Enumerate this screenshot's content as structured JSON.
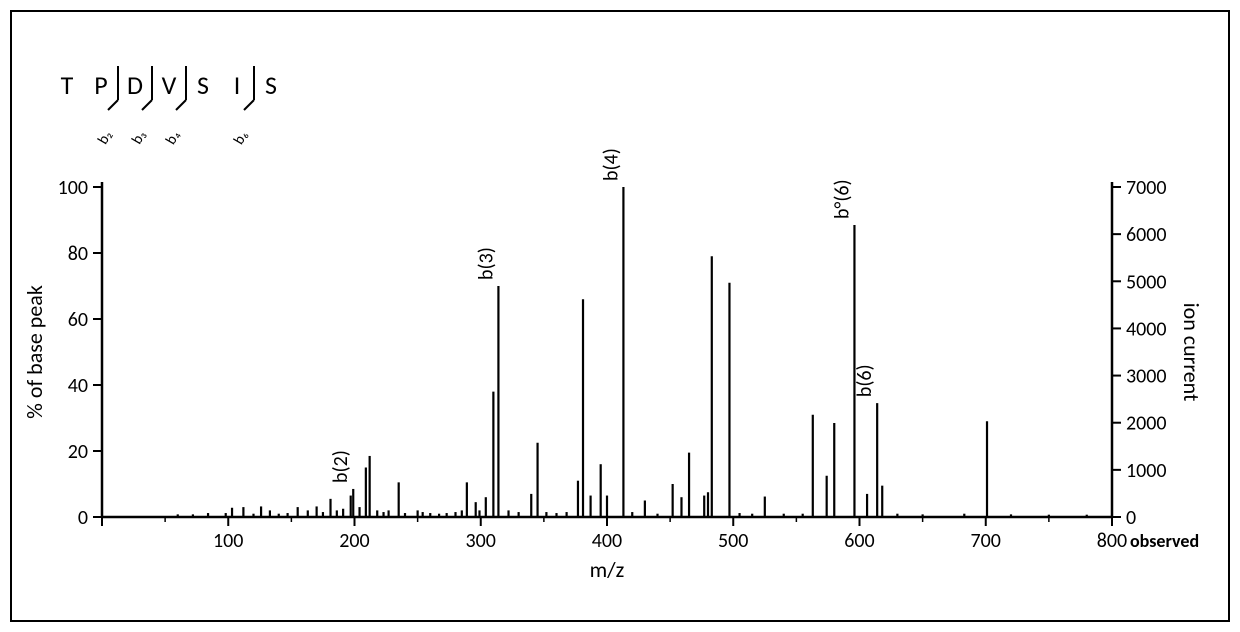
{
  "frame_border_color": "#000000",
  "background_color": "#ffffff",
  "sequence": {
    "residues": [
      "T",
      "P",
      "D",
      "V",
      "S",
      "I",
      "S"
    ],
    "frag_subs": [
      "b₂",
      "b₃",
      "b₄",
      "",
      "b₆"
    ],
    "letter_fontsize": 26,
    "sub_fontsize": 15
  },
  "chart": {
    "type": "mass-spectrum",
    "xlabel": "m/z",
    "ylabel_left": "% of base peak",
    "ylabel_right": "ion current",
    "observed_label": "observed",
    "xlim": [
      0,
      800
    ],
    "xtick_step": 100,
    "ylim_left": [
      0,
      100
    ],
    "ytick_left_step": 20,
    "ylim_right": [
      0,
      7000
    ],
    "ytick_right_step": 1000,
    "axis_color": "#000000",
    "peak_color": "#000000",
    "peak_linewidth": 2.2,
    "label_fontsize": 22,
    "tick_fontsize": 20,
    "peak_label_fontsize": 20,
    "peaks": [
      {
        "mz": 60,
        "rel": 0.8
      },
      {
        "mz": 72,
        "rel": 0.8
      },
      {
        "mz": 84,
        "rel": 1.2
      },
      {
        "mz": 98,
        "rel": 1.2
      },
      {
        "mz": 103,
        "rel": 2.8
      },
      {
        "mz": 112,
        "rel": 3.0
      },
      {
        "mz": 120,
        "rel": 1.0
      },
      {
        "mz": 126,
        "rel": 3.2
      },
      {
        "mz": 133,
        "rel": 2.0
      },
      {
        "mz": 140,
        "rel": 1.0
      },
      {
        "mz": 147,
        "rel": 1.2
      },
      {
        "mz": 155,
        "rel": 3.0
      },
      {
        "mz": 163,
        "rel": 2.0
      },
      {
        "mz": 170,
        "rel": 3.2
      },
      {
        "mz": 175,
        "rel": 1.5
      },
      {
        "mz": 181,
        "rel": 5.5
      },
      {
        "mz": 186,
        "rel": 2.0
      },
      {
        "mz": 191,
        "rel": 2.5
      },
      {
        "mz": 197,
        "rel": 6.5
      },
      {
        "mz": 199,
        "rel": 8.5,
        "label": "b(2)"
      },
      {
        "mz": 204,
        "rel": 3.0
      },
      {
        "mz": 209,
        "rel": 15.0
      },
      {
        "mz": 212,
        "rel": 18.5
      },
      {
        "mz": 218,
        "rel": 2.0
      },
      {
        "mz": 223,
        "rel": 1.5
      },
      {
        "mz": 227,
        "rel": 2.0
      },
      {
        "mz": 235,
        "rel": 10.5
      },
      {
        "mz": 240,
        "rel": 1.2
      },
      {
        "mz": 250,
        "rel": 2.0
      },
      {
        "mz": 254,
        "rel": 1.5
      },
      {
        "mz": 260,
        "rel": 1.2
      },
      {
        "mz": 267,
        "rel": 1.0
      },
      {
        "mz": 273,
        "rel": 1.2
      },
      {
        "mz": 280,
        "rel": 1.5
      },
      {
        "mz": 285,
        "rel": 2.0
      },
      {
        "mz": 289,
        "rel": 10.5
      },
      {
        "mz": 296,
        "rel": 4.5
      },
      {
        "mz": 299,
        "rel": 2.0
      },
      {
        "mz": 304,
        "rel": 6.0
      },
      {
        "mz": 310,
        "rel": 38.0
      },
      {
        "mz": 314,
        "rel": 70.0,
        "label": "b(3)"
      },
      {
        "mz": 322,
        "rel": 2.0
      },
      {
        "mz": 330,
        "rel": 1.5
      },
      {
        "mz": 340,
        "rel": 7.0
      },
      {
        "mz": 345,
        "rel": 22.5
      },
      {
        "mz": 352,
        "rel": 1.5
      },
      {
        "mz": 360,
        "rel": 1.2
      },
      {
        "mz": 368,
        "rel": 1.5
      },
      {
        "mz": 377,
        "rel": 11.0
      },
      {
        "mz": 381,
        "rel": 66.0
      },
      {
        "mz": 387,
        "rel": 6.5
      },
      {
        "mz": 395,
        "rel": 16.0
      },
      {
        "mz": 400,
        "rel": 6.5
      },
      {
        "mz": 413,
        "rel": 100.0,
        "label": "b(4)"
      },
      {
        "mz": 420,
        "rel": 1.5
      },
      {
        "mz": 430,
        "rel": 5.0
      },
      {
        "mz": 440,
        "rel": 1.0
      },
      {
        "mz": 452,
        "rel": 10.0
      },
      {
        "mz": 459,
        "rel": 6.0
      },
      {
        "mz": 465,
        "rel": 19.5
      },
      {
        "mz": 477,
        "rel": 6.5
      },
      {
        "mz": 480,
        "rel": 7.5
      },
      {
        "mz": 483,
        "rel": 79.0
      },
      {
        "mz": 497,
        "rel": 71.0
      },
      {
        "mz": 505,
        "rel": 1.2
      },
      {
        "mz": 515,
        "rel": 1.0
      },
      {
        "mz": 525,
        "rel": 6.2
      },
      {
        "mz": 540,
        "rel": 1.0
      },
      {
        "mz": 555,
        "rel": 1.0
      },
      {
        "mz": 563,
        "rel": 31.0
      },
      {
        "mz": 574,
        "rel": 12.5
      },
      {
        "mz": 580,
        "rel": 28.5
      },
      {
        "mz": 596,
        "rel": 88.5,
        "label": "b°(6)"
      },
      {
        "mz": 606,
        "rel": 7.0
      },
      {
        "mz": 614,
        "rel": 34.5,
        "label": "b(6)"
      },
      {
        "mz": 618,
        "rel": 9.5
      },
      {
        "mz": 630,
        "rel": 1.0
      },
      {
        "mz": 650,
        "rel": 0.8
      },
      {
        "mz": 683,
        "rel": 1.0
      },
      {
        "mz": 701,
        "rel": 29.0
      },
      {
        "mz": 720,
        "rel": 0.8
      },
      {
        "mz": 750,
        "rel": 0.7
      },
      {
        "mz": 780,
        "rel": 0.7
      }
    ]
  }
}
